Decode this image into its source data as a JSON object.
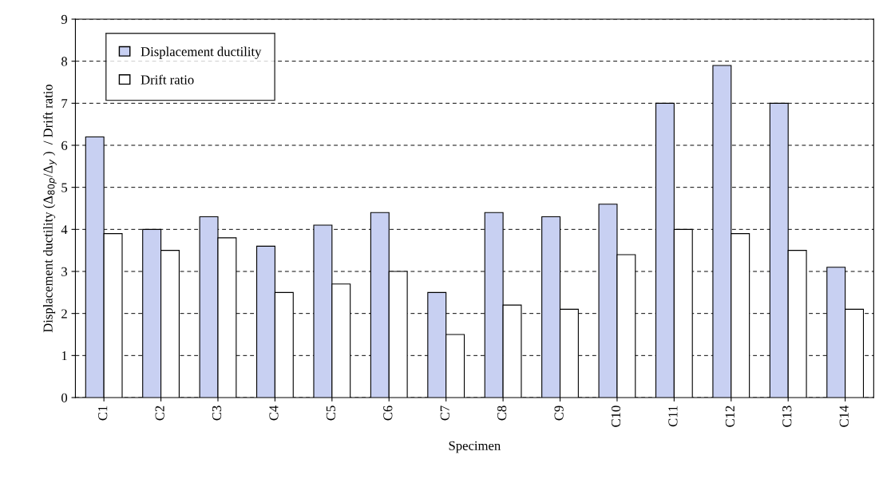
{
  "chart_data": {
    "type": "bar",
    "xlabel": "Specimen",
    "ylabel": "Displacement ductility (Δ$_{80p}$/Δ$_{y}$ )  / Drift ratio",
    "categories": [
      "C1",
      "C2",
      "C3",
      "C4",
      "C5",
      "C6",
      "C7",
      "C8",
      "C9",
      "C10",
      "C11",
      "C12",
      "C13",
      "C14"
    ],
    "series": [
      {
        "name": "Displacement ductility",
        "color": "#c8d0f2",
        "values": [
          6.2,
          4.0,
          4.3,
          3.6,
          4.1,
          4.4,
          2.5,
          4.4,
          4.3,
          4.6,
          7.0,
          7.9,
          7.0,
          3.1
        ]
      },
      {
        "name": "Drift ratio",
        "color": "#ffffff",
        "values": [
          3.9,
          3.5,
          3.8,
          2.5,
          2.7,
          3.0,
          1.5,
          2.2,
          2.1,
          3.4,
          4.0,
          3.9,
          3.5,
          2.1
        ]
      }
    ],
    "ylim": [
      0,
      9
    ],
    "yticks": [
      0,
      1,
      2,
      3,
      4,
      5,
      6,
      7,
      8,
      9
    ],
    "grid": "y",
    "legend": "top left"
  }
}
